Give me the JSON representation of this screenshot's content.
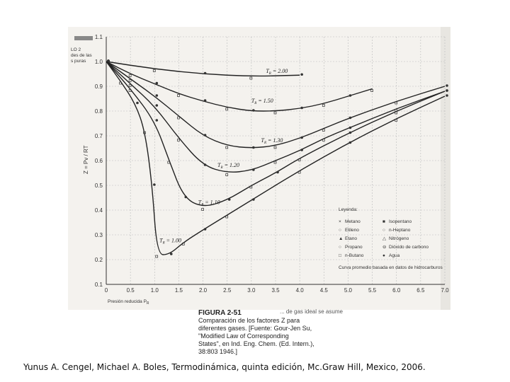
{
  "chart_data": {
    "type": "line",
    "xlabel": "Presión reducida P",
    "xlabel_sub": "R",
    "ylabel": "Z = Pv / RT",
    "xlim": [
      0,
      7.0
    ],
    "ylim": [
      0.1,
      1.1
    ],
    "x_ticks": [
      "0",
      "0.5",
      "1.0",
      "1.5",
      "2.0",
      "2.5",
      "3.0",
      "3.5",
      "4.0",
      "4.5",
      "5.0",
      "5.5",
      "6.0",
      "6.5",
      "7.0"
    ],
    "y_ticks": [
      "0.1",
      "0.2",
      "0.3",
      "0.4",
      "0.5",
      "0.6",
      "0.7",
      "0.8",
      "0.9",
      "1.0",
      "1.1"
    ],
    "grid": true,
    "series": [
      {
        "label_prefix": "T",
        "label_sub": "R",
        "label_value": "= 2.00",
        "x": [
          0,
          1,
          2,
          3,
          4
        ],
        "y": [
          1.0,
          0.97,
          0.95,
          0.94,
          0.945
        ]
      },
      {
        "label_prefix": "T",
        "label_sub": "R",
        "label_value": "= 1.50",
        "x": [
          0,
          0.5,
          1.0,
          1.5,
          2.0,
          2.5,
          3.0,
          3.5,
          4.0,
          4.5,
          5.0,
          5.5
        ],
        "y": [
          1.0,
          0.95,
          0.91,
          0.87,
          0.84,
          0.815,
          0.8,
          0.8,
          0.81,
          0.83,
          0.86,
          0.89
        ]
      },
      {
        "label_prefix": "T",
        "label_sub": "R",
        "label_value": "= 1.30",
        "x": [
          0,
          0.5,
          1.0,
          1.5,
          2.0,
          2.5,
          3.0,
          3.5,
          4.0,
          4.5,
          5.0,
          6.0,
          7.0
        ],
        "y": [
          1.0,
          0.93,
          0.86,
          0.78,
          0.7,
          0.66,
          0.65,
          0.66,
          0.69,
          0.73,
          0.77,
          0.84,
          0.9
        ]
      },
      {
        "label_prefix": "T",
        "label_sub": "R",
        "label_value": "= 1.20",
        "x": [
          0,
          0.5,
          1.0,
          1.5,
          2.0,
          2.5,
          3.0,
          3.5,
          4.0,
          4.5,
          5.0,
          6.0,
          7.0
        ],
        "y": [
          1.0,
          0.91,
          0.82,
          0.69,
          0.58,
          0.55,
          0.56,
          0.6,
          0.64,
          0.69,
          0.73,
          0.81,
          0.88
        ]
      },
      {
        "label_prefix": "T",
        "label_sub": "R",
        "label_value": "= 1.10",
        "x": [
          0,
          0.5,
          1.0,
          1.3,
          1.6,
          2.0,
          2.5,
          3.0,
          3.5,
          4.0,
          5.0,
          6.0,
          7.0
        ],
        "y": [
          1.0,
          0.89,
          0.76,
          0.6,
          0.45,
          0.41,
          0.44,
          0.5,
          0.55,
          0.61,
          0.71,
          0.8,
          0.88
        ]
      },
      {
        "label_prefix": "T",
        "label_sub": "R",
        "label_value": "= 1.00",
        "x": [
          0,
          0.3,
          0.6,
          0.8,
          0.95,
          1.05,
          1.3,
          1.6,
          2.0,
          2.5,
          3.0,
          4.0,
          5.0,
          6.0,
          7.0
        ],
        "y": [
          1.0,
          0.92,
          0.83,
          0.72,
          0.5,
          0.22,
          0.22,
          0.27,
          0.32,
          0.38,
          0.44,
          0.56,
          0.67,
          0.77,
          0.86
        ]
      }
    ],
    "legend": {
      "title": "Leyenda:",
      "placement": "bottom-right",
      "entries": [
        {
          "symbol": "×",
          "name": "Metano"
        },
        {
          "symbol": "■",
          "name": "Isopentano"
        },
        {
          "symbol": "○",
          "name": "Etileno"
        },
        {
          "symbol": "○",
          "name": "n-Heptano"
        },
        {
          "symbol": "▲",
          "name": "Etano"
        },
        {
          "symbol": "△",
          "name": "Nitrógeno"
        },
        {
          "symbol": "○",
          "name": "Propano"
        },
        {
          "symbol": "⊖",
          "name": "Dióxido de carbono"
        },
        {
          "symbol": "□",
          "name": "n-Butano"
        },
        {
          "symbol": "●",
          "name": "Agua"
        }
      ],
      "note": "Curva promedio basada en datos de hidrocarburos"
    },
    "corner_text": [
      "LO 2",
      "des de las",
      "s puras"
    ]
  },
  "caption": {
    "figure_id": "FIGURA 2-51",
    "lines": [
      "Comparación de los factores Z para",
      "diferentes gases. [Fuente: Gour-Jen Su,",
      "\"Modified Law of Corresponding",
      "States\", en Ind. Eng. Chem. (Ed. Intern.),",
      "38:803 1946.]"
    ],
    "tail": "... de gas ideal se asume"
  },
  "credit": "Yunus A. Cengel, Michael A. Boles, Termodinámica, quinta edición, Mc.Graw Hill, Mexico, 2006."
}
